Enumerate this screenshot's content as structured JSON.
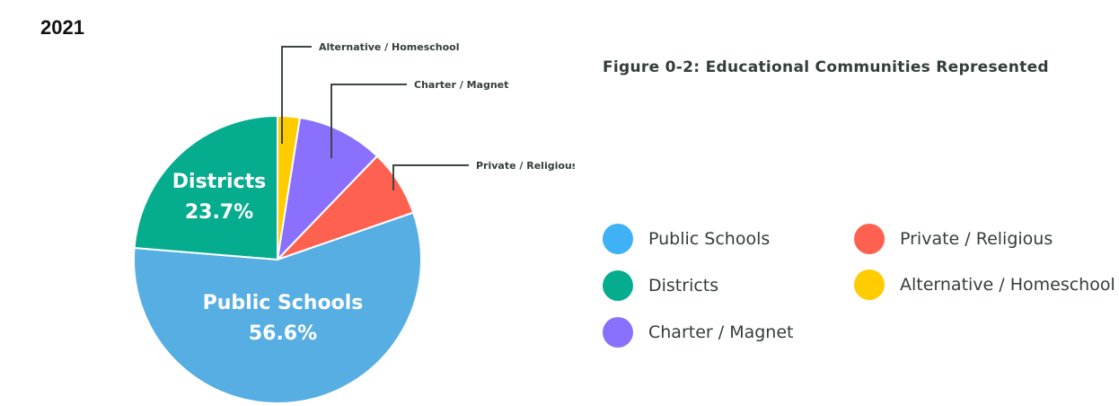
{
  "year_label": "2021",
  "figure_title": "Figure 0-2: Educational Communities Represented",
  "chart_data": {
    "type": "pie",
    "title": "Figure 0-2: Educational Communities Represented",
    "legend_position": "right",
    "slices": [
      {
        "name": "Public Schools",
        "value": 56.6,
        "color": "#56aee2",
        "value_label": "56.6%",
        "label_display": "inside"
      },
      {
        "name": "Districts",
        "value": 23.7,
        "color": "#06ac8e",
        "value_label": "23.7%",
        "label_display": "inside"
      },
      {
        "name": "Alternative / Homeschool",
        "value": 2.5,
        "color": "#ffcc00",
        "label_display": "callout"
      },
      {
        "name": "Charter / Magnet",
        "value": 9.7,
        "color": "#8a70fc",
        "label_display": "callout"
      },
      {
        "name": "Private / Religious",
        "value": 7.5,
        "color": "#ff6150",
        "label_display": "callout"
      }
    ]
  },
  "legend": {
    "items": [
      {
        "label": "Public Schools",
        "color": "#3fb1f5"
      },
      {
        "label": "Districts",
        "color": "#06ac8e"
      },
      {
        "label": "Charter / Magnet",
        "color": "#8a70fc"
      },
      {
        "label": "Private / Religious",
        "color": "#ff6150"
      },
      {
        "label": "Alternative / Homeschool",
        "color": "#ffcc00"
      }
    ]
  }
}
